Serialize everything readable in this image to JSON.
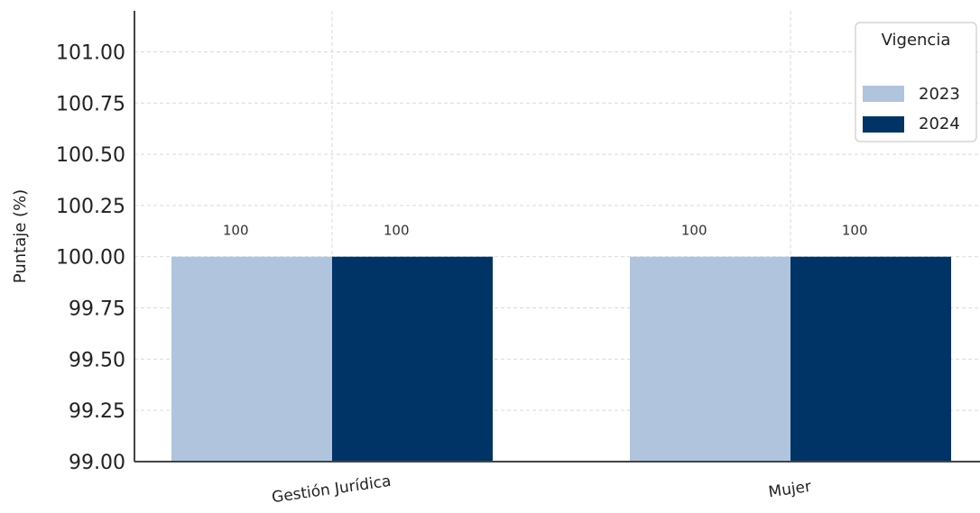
{
  "chart_data": {
    "type": "bar",
    "title": "",
    "xlabel": "",
    "ylabel": "Puntaje (%)",
    "ylim": [
      99.0,
      101.2
    ],
    "yticks": [
      "99.00",
      "99.25",
      "99.50",
      "99.75",
      "100.00",
      "100.25",
      "100.50",
      "100.75",
      "101.00"
    ],
    "categories": [
      "Gestión Jurídica",
      "Mujer"
    ],
    "series": [
      {
        "name": "2023",
        "values": [
          100,
          100
        ],
        "labels": [
          "100",
          "100"
        ],
        "color": "#b0c4de"
      },
      {
        "name": "2024",
        "values": [
          100,
          100
        ],
        "labels": [
          "100",
          "100"
        ],
        "color": "#003366"
      }
    ],
    "legend": {
      "title": "Vigencia",
      "placement": "top-right"
    },
    "grid": true
  }
}
